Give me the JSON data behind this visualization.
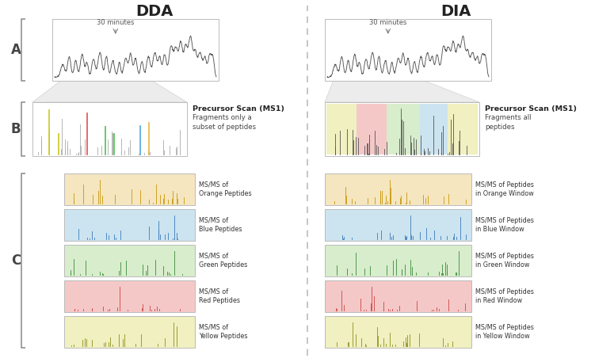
{
  "title_dda": "DDA",
  "title_dia": "DIA",
  "colors": {
    "orange_bg": "#f5e6c0",
    "red_bg": "#f5c8c8",
    "green_bg": "#d8edcc",
    "blue_bg": "#cce4f0",
    "yellow_bg": "#f0f0c0",
    "orange_line": "#c8960a",
    "red_line": "#cc4444",
    "green_line": "#3a8a3a",
    "blue_line": "#3a7ab8",
    "yellow_line": "#909020",
    "dda_orange": "#e8b840",
    "dda_red": "#e05050",
    "dda_green": "#50c050",
    "dda_blue": "#50a8e0",
    "dda_yellow": "#c8c820",
    "chrom_line": "#555555",
    "spec_grey": "#999999",
    "box_border": "#bbbbbb",
    "bracket": "#888888",
    "divider": "#bbbbbb"
  },
  "annotation_30min": "30 minutes",
  "dda_b_title": "Precursor Scan (MS1)",
  "dda_b_sub": "Fragments only a\nsubset of peptides",
  "dia_b_title": "Precursor Scan (MS1)",
  "dia_b_sub": "Fragments all\npeptides",
  "dda_c_labels": [
    "MS/MS of\nOrange Peptides",
    "MS/MS of\nBlue Peptides",
    "MS/MS of\nGreen Peptides",
    "MS/MS of\nRed Peptides",
    "MS/MS of\nYellow Peptides"
  ],
  "dia_c_labels": [
    "MS/MS of Peptides\nin Orange Window",
    "MS/MS of Peptides\nin Blue Window",
    "MS/MS of Peptides\nin Green Window",
    "MS/MS of Peptides\nin Red Window",
    "MS/MS of Peptides\nin Yellow Window"
  ]
}
